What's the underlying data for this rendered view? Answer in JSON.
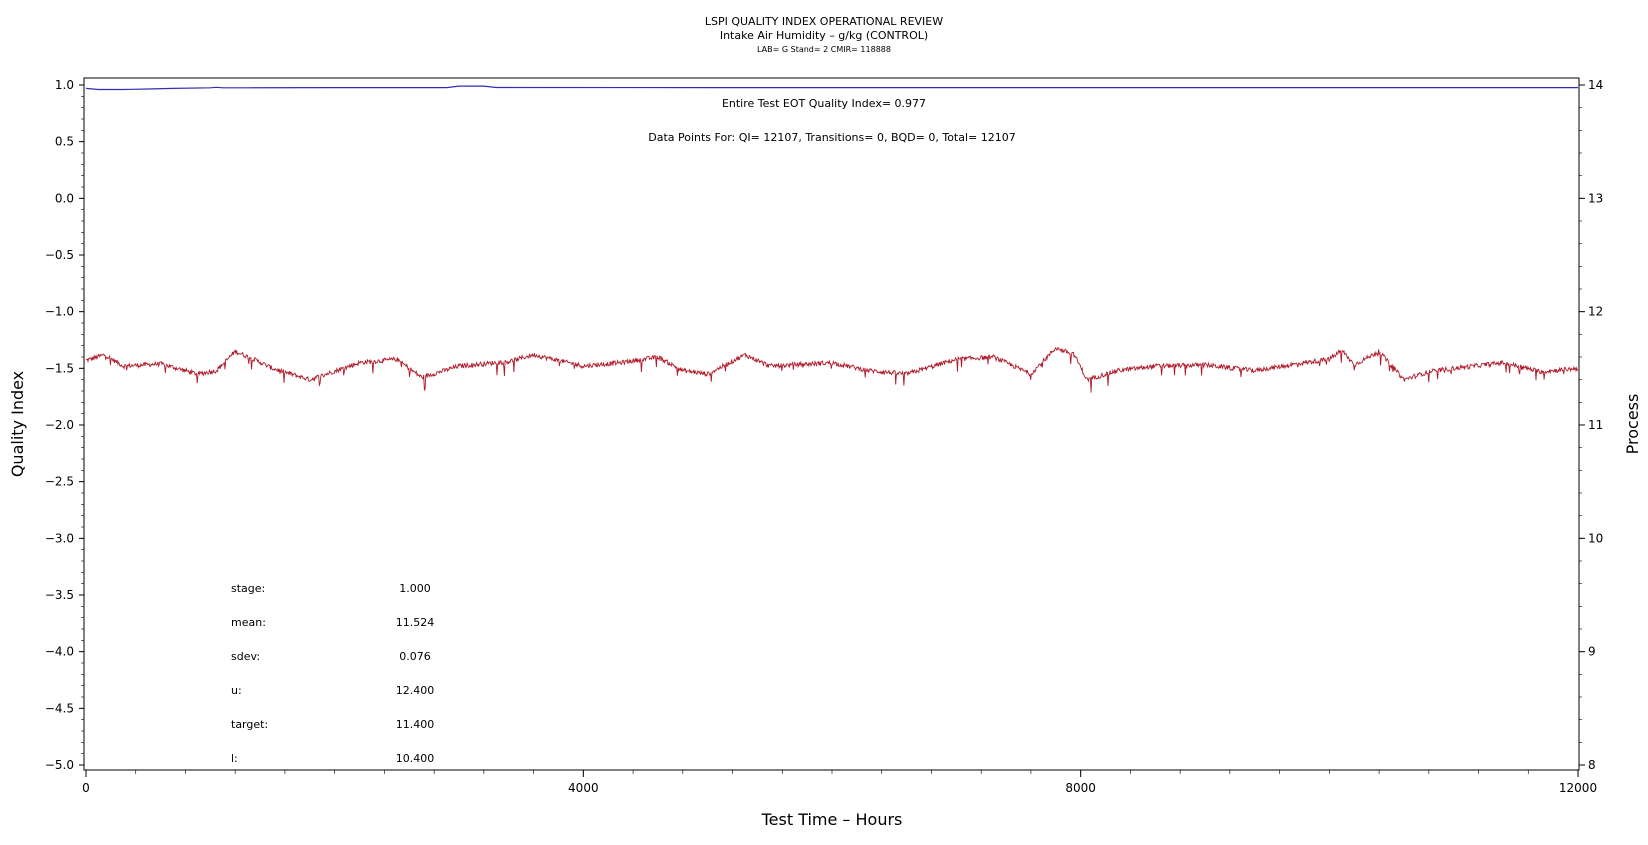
{
  "chart_data": {
    "type": "line",
    "title": "LSPI QUALITY INDEX OPERATIONAL REVIEW",
    "subtitle": "Intake Air Humidity – g/kg (CONTROL)",
    "subtitle2": "LAB= G Stand= 2 CMIR= 118888",
    "xlabel": "Test Time – Hours",
    "ylabel": "Quality Index",
    "y2label": "Process",
    "xlim": [
      0,
      12000
    ],
    "ylim": [
      -5.0,
      1.0
    ],
    "y2lim": [
      8,
      14
    ],
    "x_ticks": [
      0,
      4000,
      8000,
      12000
    ],
    "x_tick_labels": [
      "0",
      "4000",
      "8000",
      "12000"
    ],
    "y_ticks": [
      1.0,
      0.5,
      0.0,
      -0.5,
      -1.0,
      -1.5,
      -2.0,
      -2.5,
      -3.0,
      -3.5,
      -4.0,
      -4.5,
      -5.0
    ],
    "y_tick_labels": [
      "1.0",
      "0.5",
      "0.0",
      "−0.5",
      "−1.0",
      "−1.5",
      "−2.0",
      "−2.5",
      "−3.0",
      "−3.5",
      "−4.0",
      "−4.5",
      "−5.0"
    ],
    "y2_ticks": [
      14,
      13,
      12,
      11,
      10,
      9,
      8
    ],
    "y2_tick_labels": [
      "14",
      "13",
      "12",
      "11",
      "10",
      "9",
      "8"
    ],
    "annotations": {
      "eot": "Entire Test EOT Quality Index=   0.977",
      "points": "Data Points For: QI= 12107, Transitions=     0, BQD=     0, Total= 12107"
    },
    "stats": [
      {
        "label": "stage:",
        "value": "1.000"
      },
      {
        "label": "mean:",
        "value": "11.524"
      },
      {
        "label": "sdev:",
        "value": "0.076"
      },
      {
        "label": "u:",
        "value": "12.400"
      },
      {
        "label": "target:",
        "value": "11.400"
      },
      {
        "label": "l:",
        "value": "10.400"
      }
    ],
    "series": [
      {
        "axis": "left",
        "color": "#2f2fb0",
        "x": [
          0,
          100,
          300,
          500,
          700,
          1000,
          1050,
          1100,
          1300,
          2000,
          2900,
          3000,
          3200,
          3300,
          5000,
          8000,
          12000
        ],
        "values": [
          0.97,
          0.96,
          0.96,
          0.965,
          0.97,
          0.975,
          0.98,
          0.975,
          0.975,
          0.977,
          0.977,
          0.99,
          0.99,
          0.978,
          0.977,
          0.977,
          0.977
        ]
      },
      {
        "axis": "right",
        "color": "#b01a2a",
        "noise": 0.02,
        "x": [
          0,
          150,
          300,
          600,
          900,
          1050,
          1200,
          1350,
          1500,
          1800,
          2200,
          2500,
          2700,
          3000,
          3400,
          3600,
          3800,
          4000,
          4300,
          4600,
          4800,
          5000,
          5300,
          5500,
          6000,
          6300,
          6600,
          7000,
          7300,
          7600,
          7800,
          7950,
          8050,
          8300,
          8600,
          9000,
          9400,
          9800,
          10000,
          10100,
          10200,
          10400,
          10600,
          10800,
          11000,
          11400,
          11700,
          12000
        ],
        "values": [
          11.57,
          11.62,
          11.52,
          11.54,
          11.45,
          11.48,
          11.65,
          11.58,
          11.5,
          11.4,
          11.55,
          11.58,
          11.42,
          11.52,
          11.56,
          11.62,
          11.57,
          11.52,
          11.55,
          11.6,
          11.48,
          11.45,
          11.62,
          11.52,
          11.55,
          11.48,
          11.45,
          11.58,
          11.6,
          11.45,
          11.68,
          11.62,
          11.4,
          11.48,
          11.52,
          11.53,
          11.48,
          11.55,
          11.58,
          11.66,
          11.53,
          11.65,
          11.4,
          11.47,
          11.5,
          11.55,
          11.47,
          11.5
        ]
      }
    ]
  }
}
